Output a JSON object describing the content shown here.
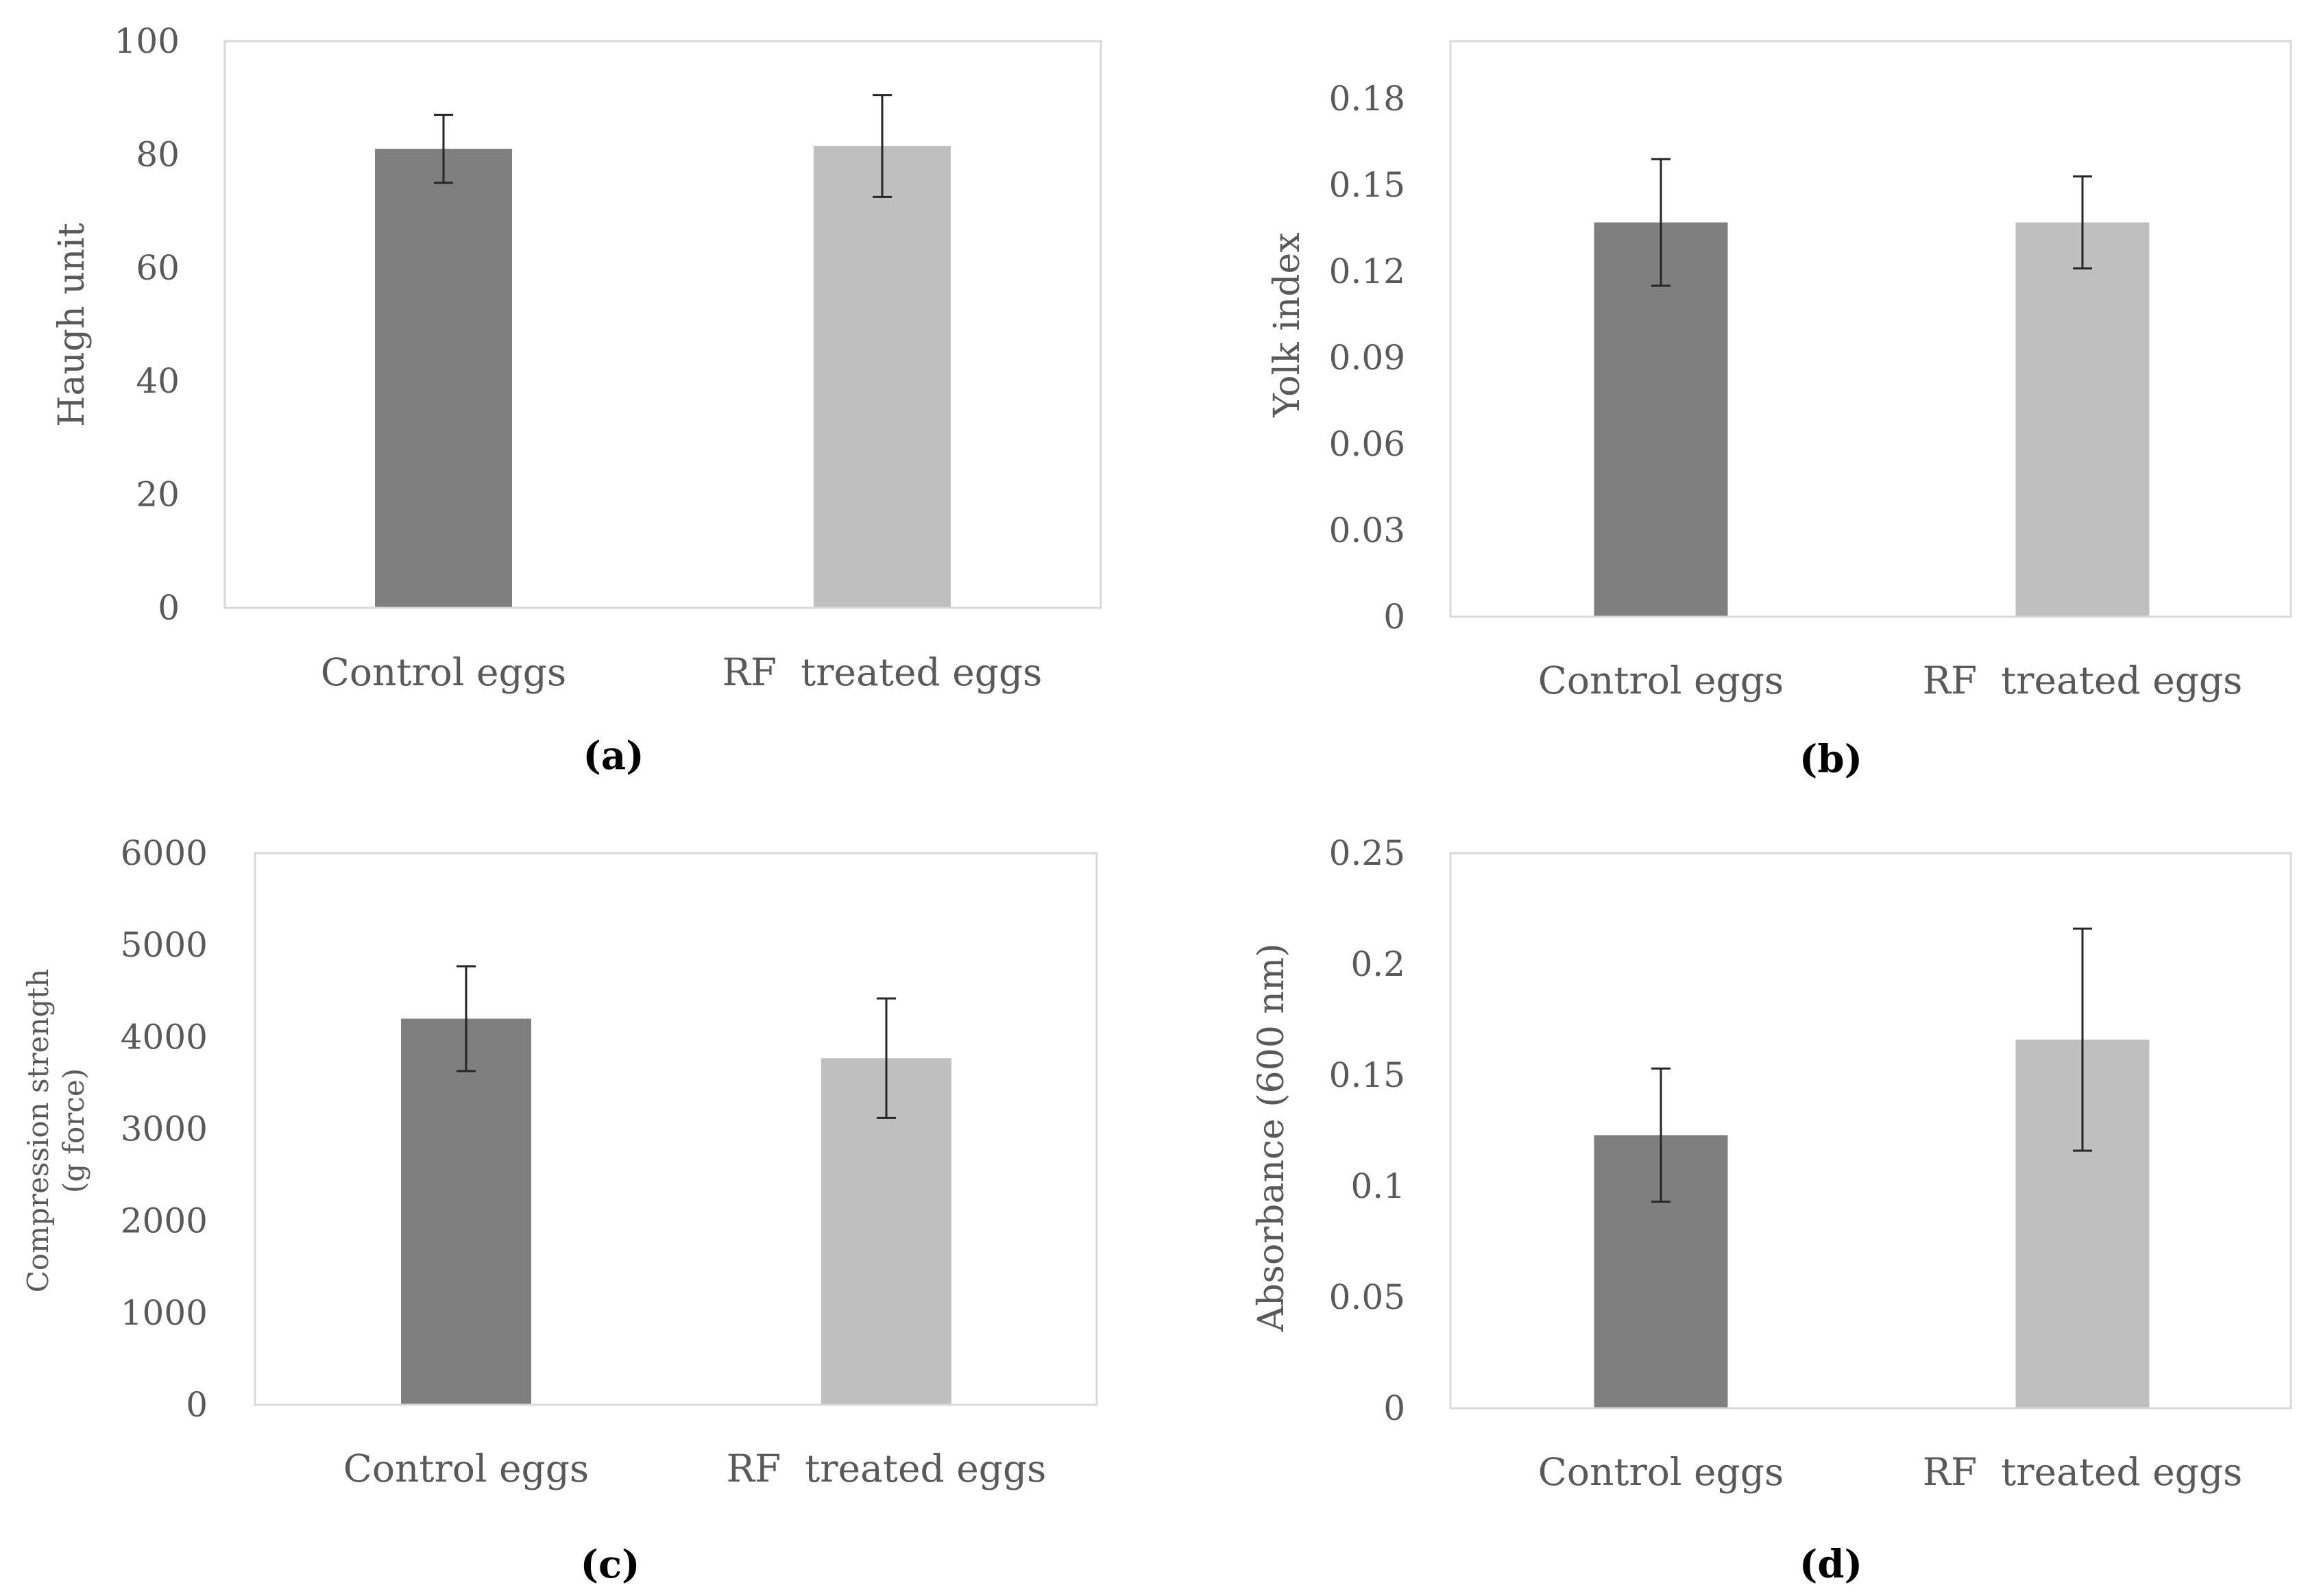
{
  "chart_data": [
    {
      "id": "a",
      "type": "bar",
      "panel_label": "(a)",
      "categories": [
        "Control eggs",
        "RF  treated eggs"
      ],
      "values": [
        81,
        81.5
      ],
      "errors": [
        6,
        9
      ],
      "colors": [
        "#7f7f7f",
        "#bfbfbf"
      ],
      "ylabel": "Haugh unit",
      "ylim": [
        0,
        100
      ],
      "yticks": [
        "0",
        "20",
        "40",
        "60",
        "80",
        "100"
      ],
      "yticks_values": [
        0,
        20,
        40,
        60,
        80,
        100
      ]
    },
    {
      "id": "b",
      "type": "bar",
      "panel_label": "(b)",
      "categories": [
        "Control eggs",
        "RF  treated eggs"
      ],
      "values": [
        0.137,
        0.137
      ],
      "errors": [
        0.022,
        0.016
      ],
      "colors": [
        "#7f7f7f",
        "#bfbfbf"
      ],
      "ylabel": "Yolk index",
      "ylim": [
        0,
        0.2
      ],
      "yticks": [
        "0",
        "0.03",
        "0.06",
        "0.09",
        "0.12",
        "0.15",
        "0.18"
      ],
      "yticks_values": [
        0,
        0.03,
        0.06,
        0.09,
        0.12,
        0.15,
        0.18
      ]
    },
    {
      "id": "c",
      "type": "bar",
      "panel_label": "(c)",
      "categories": [
        "Control eggs",
        "RF  treated eggs"
      ],
      "values": [
        4200,
        3770
      ],
      "errors": [
        570,
        650
      ],
      "colors": [
        "#7f7f7f",
        "#bfbfbf"
      ],
      "ylabel": "Compression  strength",
      "ylabel2": "(g force)",
      "ylim": [
        0,
        6000
      ],
      "yticks": [
        "0",
        "1000",
        "2000",
        "3000",
        "4000",
        "5000",
        "6000"
      ],
      "yticks_values": [
        0,
        1000,
        2000,
        3000,
        4000,
        5000,
        6000
      ]
    },
    {
      "id": "d",
      "type": "bar",
      "panel_label": "(d)",
      "categories": [
        "Control eggs",
        "RF  treated eggs"
      ],
      "values": [
        0.123,
        0.166
      ],
      "errors": [
        0.03,
        0.05
      ],
      "colors": [
        "#7f7f7f",
        "#bfbfbf"
      ],
      "ylabel": "Absorbance (600 nm)",
      "ylim": [
        0,
        0.25
      ],
      "yticks": [
        "0",
        "0.05",
        "0.1",
        "0.15",
        "0.2",
        "0.25"
      ],
      "yticks_values": [
        0,
        0.05,
        0.1,
        0.15,
        0.2,
        0.25
      ]
    }
  ]
}
